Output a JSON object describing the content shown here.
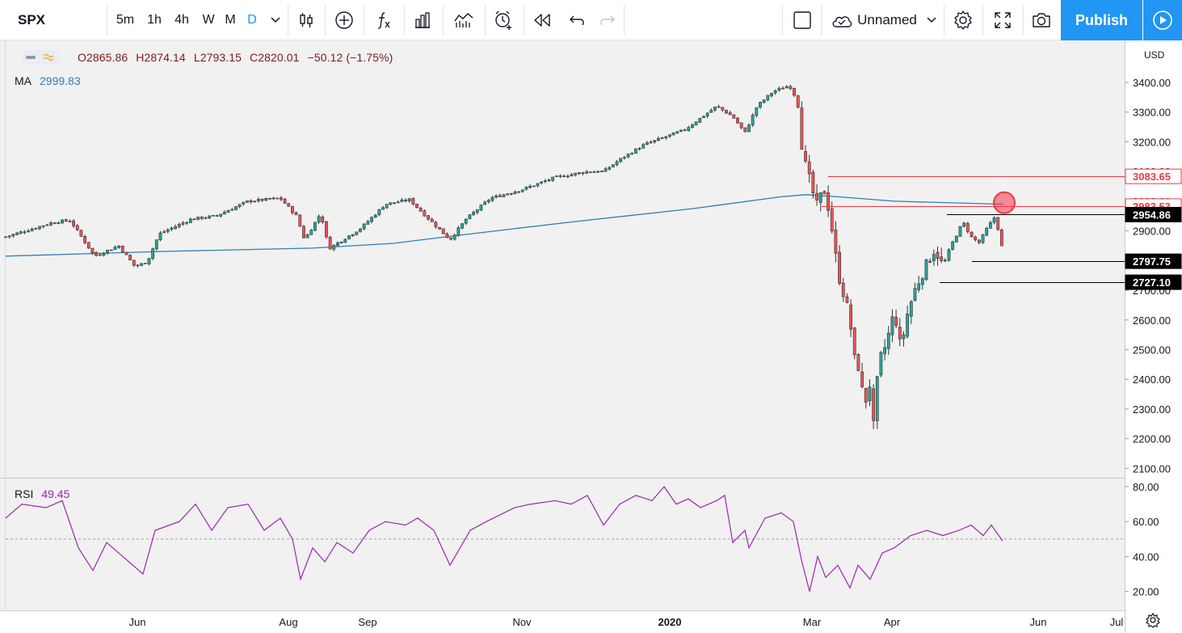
{
  "toolbar": {
    "symbol": "SPX",
    "intervals": [
      "5m",
      "1h",
      "4h",
      "W",
      "M",
      "D"
    ],
    "active_interval": "D",
    "layout_name": "Unnamed",
    "publish_label": "Publish",
    "icons": [
      "chevron-down-icon",
      "candles-icon",
      "plus-circle-icon",
      "fx-icon",
      "compare-icon",
      "templates-icon",
      "alert-icon",
      "replay-icon",
      "undo-icon",
      "redo-icon",
      "square-icon",
      "cloud-icon",
      "gear-icon",
      "fullscreen-icon",
      "camera-icon",
      "play-icon"
    ]
  },
  "legend": {
    "open": "O2865.86",
    "high": "H2874.14",
    "low": "L2793.15",
    "close": "C2820.01",
    "change": "−50.12 (−1.75%)",
    "ma_label": "MA",
    "ma_value": "2999.83",
    "rsi_label": "RSI",
    "rsi_value": "49.45"
  },
  "colors": {
    "up": "#26a69a",
    "down": "#ef5350",
    "ma": "#2f7fb6",
    "rsi": "#9c27b0",
    "accent": "#2196f3",
    "resistance": "#f23645"
  },
  "chart_data": [
    {
      "type": "candlestick",
      "currency": "USD",
      "x_ticks": [
        "Jun",
        "Aug",
        "Sep",
        "Nov",
        "2020",
        "Mar",
        "Apr",
        "Jun",
        "Jul"
      ],
      "y_ticks": [
        "3400.00",
        "3300.00",
        "3200.00",
        "3100.00",
        "3000.00",
        "2900.00",
        "2800.00",
        "2700.00",
        "2600.00",
        "2500.00",
        "2400.00",
        "2300.00",
        "2200.00",
        "2100.00"
      ],
      "ylim": [
        2100,
        3480
      ],
      "price_labels": [
        {
          "value": 3083.65,
          "text": "3083.65",
          "style": "red"
        },
        {
          "value": 2983.53,
          "text": "2983.53",
          "style": "red"
        },
        {
          "value": 2954.86,
          "text": "2954.86",
          "style": "black"
        },
        {
          "value": 2797.75,
          "text": "2797.75",
          "style": "black"
        },
        {
          "value": 2727.1,
          "text": "2727.10",
          "style": "black"
        }
      ],
      "ma_path": [
        [
          0,
          2815
        ],
        [
          200,
          2831
        ],
        [
          380,
          2842
        ],
        [
          480,
          2858
        ],
        [
          560,
          2885
        ],
        [
          700,
          2930
        ],
        [
          850,
          2975
        ],
        [
          960,
          3015
        ],
        [
          990,
          3022
        ],
        [
          1040,
          3013
        ],
        [
          1100,
          3000
        ],
        [
          1235,
          2990
        ]
      ],
      "close_path": [
        [
          0,
          2880
        ],
        [
          60,
          2930
        ],
        [
          80,
          2935
        ],
        [
          110,
          2815
        ],
        [
          140,
          2850
        ],
        [
          160,
          2780
        ],
        [
          175,
          2795
        ],
        [
          190,
          2890
        ],
        [
          230,
          2940
        ],
        [
          260,
          2950
        ],
        [
          300,
          3000
        ],
        [
          340,
          3010
        ],
        [
          360,
          2950
        ],
        [
          370,
          2870
        ],
        [
          390,
          2960
        ],
        [
          400,
          2840
        ],
        [
          440,
          2910
        ],
        [
          470,
          2990
        ],
        [
          500,
          3005
        ],
        [
          520,
          2950
        ],
        [
          550,
          2870
        ],
        [
          570,
          2940
        ],
        [
          600,
          3010
        ],
        [
          640,
          3040
        ],
        [
          680,
          3080
        ],
        [
          720,
          3100
        ],
        [
          740,
          3100
        ],
        [
          760,
          3140
        ],
        [
          790,
          3190
        ],
        [
          820,
          3220
        ],
        [
          840,
          3240
        ],
        [
          860,
          3280
        ],
        [
          880,
          3320
        ],
        [
          900,
          3285
        ],
        [
          915,
          3230
        ],
        [
          930,
          3320
        ],
        [
          950,
          3370
        ],
        [
          970,
          3390
        ],
        [
          980,
          3340
        ],
        [
          985,
          3200
        ],
        [
          990,
          3120
        ],
        [
          1000,
          3020
        ],
        [
          1005,
          2975
        ],
        [
          1012,
          3050
        ],
        [
          1020,
          2960
        ],
        [
          1030,
          2760
        ],
        [
          1040,
          2660
        ],
        [
          1045,
          2600
        ],
        [
          1050,
          2470
        ],
        [
          1058,
          2430
        ],
        [
          1062,
          2300
        ],
        [
          1070,
          2390
        ],
        [
          1075,
          2210
        ],
        [
          1080,
          2450
        ],
        [
          1090,
          2520
        ],
        [
          1100,
          2630
        ],
        [
          1108,
          2500
        ],
        [
          1115,
          2610
        ],
        [
          1125,
          2700
        ],
        [
          1135,
          2760
        ],
        [
          1150,
          2840
        ],
        [
          1160,
          2780
        ],
        [
          1170,
          2850
        ],
        [
          1185,
          2930
        ],
        [
          1195,
          2880
        ],
        [
          1205,
          2860
        ],
        [
          1215,
          2910
        ],
        [
          1225,
          2950
        ],
        [
          1235,
          2820
        ]
      ],
      "annotations": [
        {
          "type": "h-line",
          "value": 3083.65,
          "from_x": 1018,
          "color": "red"
        },
        {
          "type": "h-line",
          "value": 2983.53,
          "from_x": 1010,
          "color": "red"
        },
        {
          "type": "h-line",
          "value": 2954.86,
          "from_x": 1165,
          "color": "black"
        },
        {
          "type": "h-line",
          "value": 2797.75,
          "from_x": 1196,
          "color": "black"
        },
        {
          "type": "h-line",
          "value": 2727.1,
          "from_x": 1156,
          "color": "black"
        },
        {
          "type": "circle",
          "value": 2995,
          "x": 1236,
          "color": "red"
        }
      ]
    },
    {
      "type": "line",
      "name": "RSI",
      "y_ticks": [
        "80.00",
        "60.00",
        "40.00",
        "20.00"
      ],
      "ylim": [
        13,
        87
      ],
      "midline": 50,
      "series": [
        [
          0,
          62
        ],
        [
          20,
          70
        ],
        [
          50,
          68
        ],
        [
          70,
          72
        ],
        [
          90,
          45
        ],
        [
          108,
          32
        ],
        [
          125,
          48
        ],
        [
          145,
          40
        ],
        [
          170,
          30
        ],
        [
          185,
          55
        ],
        [
          215,
          60
        ],
        [
          235,
          70
        ],
        [
          255,
          55
        ],
        [
          275,
          68
        ],
        [
          300,
          70
        ],
        [
          320,
          55
        ],
        [
          340,
          62
        ],
        [
          355,
          50
        ],
        [
          365,
          27
        ],
        [
          380,
          45
        ],
        [
          395,
          37
        ],
        [
          410,
          48
        ],
        [
          430,
          42
        ],
        [
          450,
          55
        ],
        [
          470,
          60
        ],
        [
          495,
          58
        ],
        [
          510,
          62
        ],
        [
          530,
          55
        ],
        [
          550,
          35
        ],
        [
          575,
          55
        ],
        [
          595,
          60
        ],
        [
          630,
          68
        ],
        [
          650,
          70
        ],
        [
          680,
          72
        ],
        [
          700,
          70
        ],
        [
          720,
          75
        ],
        [
          740,
          58
        ],
        [
          760,
          70
        ],
        [
          780,
          75
        ],
        [
          800,
          72
        ],
        [
          815,
          80
        ],
        [
          830,
          70
        ],
        [
          845,
          73
        ],
        [
          860,
          68
        ],
        [
          880,
          72
        ],
        [
          890,
          75
        ],
        [
          900,
          48
        ],
        [
          915,
          55
        ],
        [
          920,
          45
        ],
        [
          940,
          62
        ],
        [
          960,
          65
        ],
        [
          975,
          60
        ],
        [
          985,
          38
        ],
        [
          995,
          20
        ],
        [
          1005,
          40
        ],
        [
          1015,
          28
        ],
        [
          1030,
          35
        ],
        [
          1045,
          22
        ],
        [
          1055,
          35
        ],
        [
          1070,
          27
        ],
        [
          1085,
          42
        ],
        [
          1100,
          45
        ],
        [
          1120,
          52
        ],
        [
          1140,
          55
        ],
        [
          1160,
          52
        ],
        [
          1180,
          55
        ],
        [
          1195,
          58
        ],
        [
          1210,
          52
        ],
        [
          1220,
          58
        ],
        [
          1234,
          49
        ]
      ]
    }
  ]
}
